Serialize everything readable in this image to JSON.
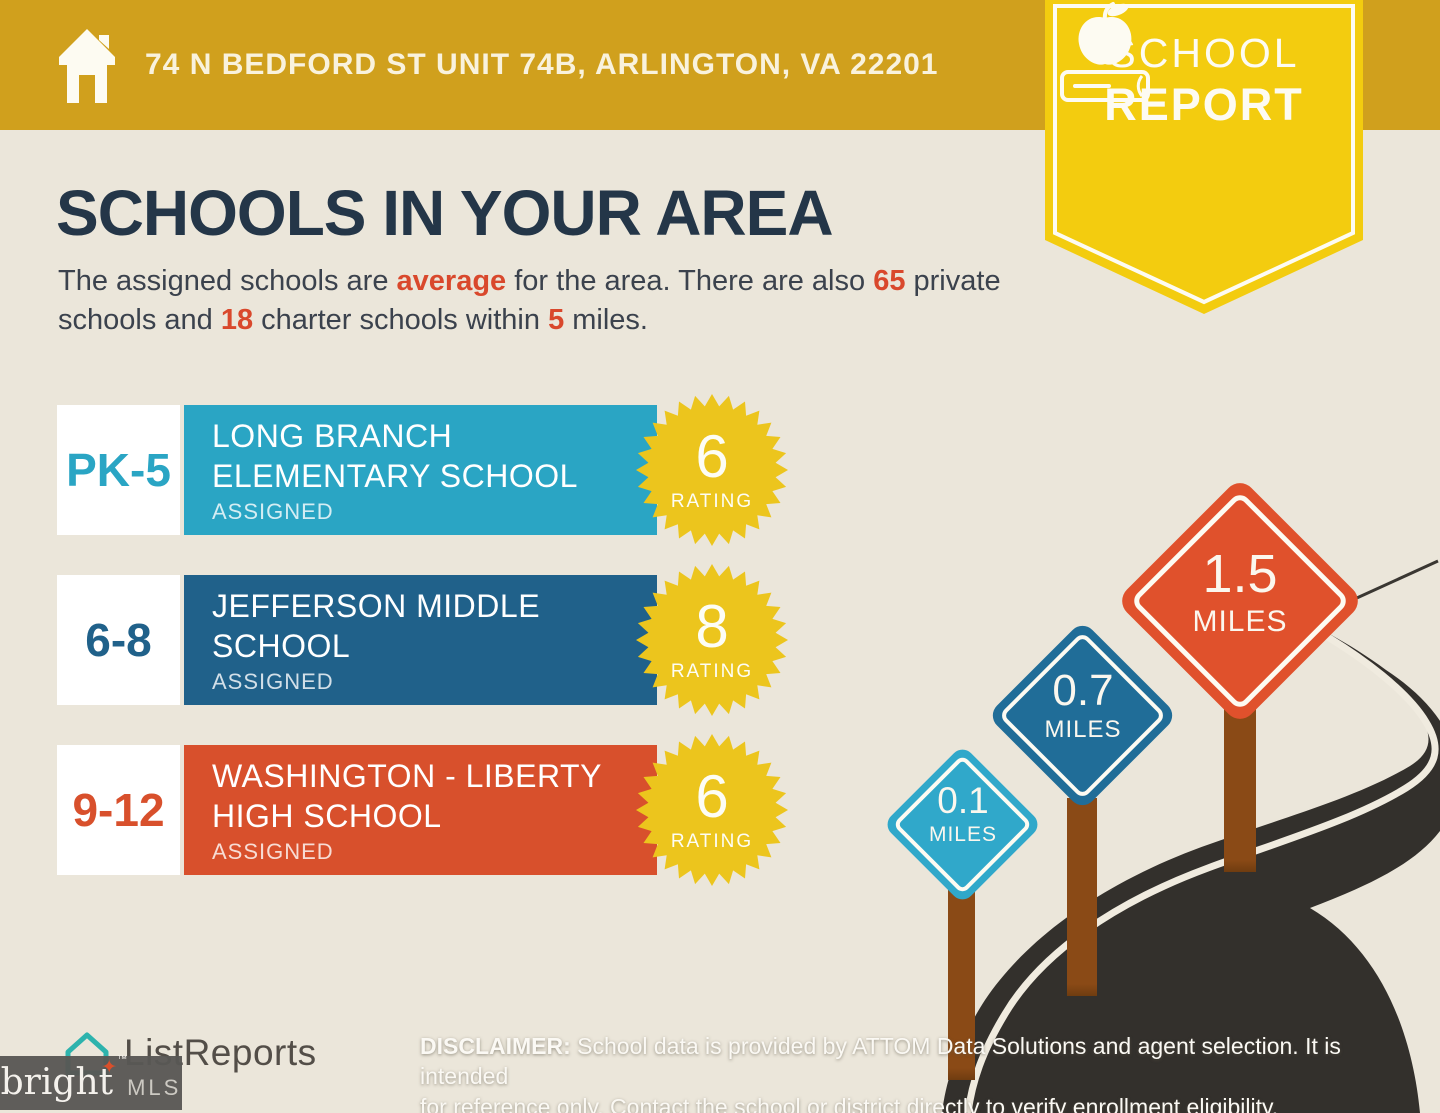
{
  "colors": {
    "header_gold": "#d0a01d",
    "ribbon_yellow": "#f3cc0f",
    "badge_yellow": "#ecc51d",
    "title_navy": "#243648",
    "accent_red": "#d9482c",
    "background_beige": "#ebe6da",
    "road_dark": "#33302c",
    "post_brown": "#8a4a16",
    "listreports_teal": "#2db3ad"
  },
  "header": {
    "address": "74 N BEDFORD ST UNIT 74B, ARLINGTON, VA 22201",
    "badge_line1": "SCHOOL",
    "badge_line2": "REPORT"
  },
  "title": "SCHOOLS IN YOUR AREA",
  "intro": {
    "p0": "The assigned schools are ",
    "p1": "average",
    "p2": " for the area. There are also ",
    "p3": "65",
    "p4": " private schools and ",
    "p5": "18",
    "p6": " charter schools within ",
    "p7": "5",
    "p8": " miles."
  },
  "schools": [
    {
      "grades": "PK-5",
      "name_line1": "LONG BRANCH",
      "name_line2": "ELEMENTARY SCHOOL",
      "status": "ASSIGNED",
      "rating": "6",
      "rating_label": "RATING",
      "color": "#2aa5c4"
    },
    {
      "grades": "6-8",
      "name_line1": "JEFFERSON MIDDLE",
      "name_line2": "SCHOOL",
      "status": "ASSIGNED",
      "rating": "8",
      "rating_label": "RATING",
      "color": "#20618a"
    },
    {
      "grades": "9-12",
      "name_line1": "WASHINGTON - LIBERTY",
      "name_line2": "HIGH SCHOOL",
      "status": "ASSIGNED",
      "rating": "6",
      "rating_label": "RATING",
      "color": "#d8502c"
    }
  ],
  "signs": [
    {
      "distance": "0.1",
      "unit": "MILES",
      "color": "#30a8ca"
    },
    {
      "distance": "0.7",
      "unit": "MILES",
      "color": "#206d98"
    },
    {
      "distance": "1.5",
      "unit": "MILES",
      "color": "#e0512c"
    }
  ],
  "footer": {
    "listreports": "ListReports",
    "disclaimer_bold": "DISCLAIMER:",
    "disclaimer_line1": " School data is provided by ATTOM Data Solutions and agent selection. It is intended",
    "disclaimer_line2": "for reference only. Contact the school or district directly to verify enrollment eligibility.",
    "bright": "bright",
    "bright_tm": "™",
    "mls": "MLS"
  }
}
